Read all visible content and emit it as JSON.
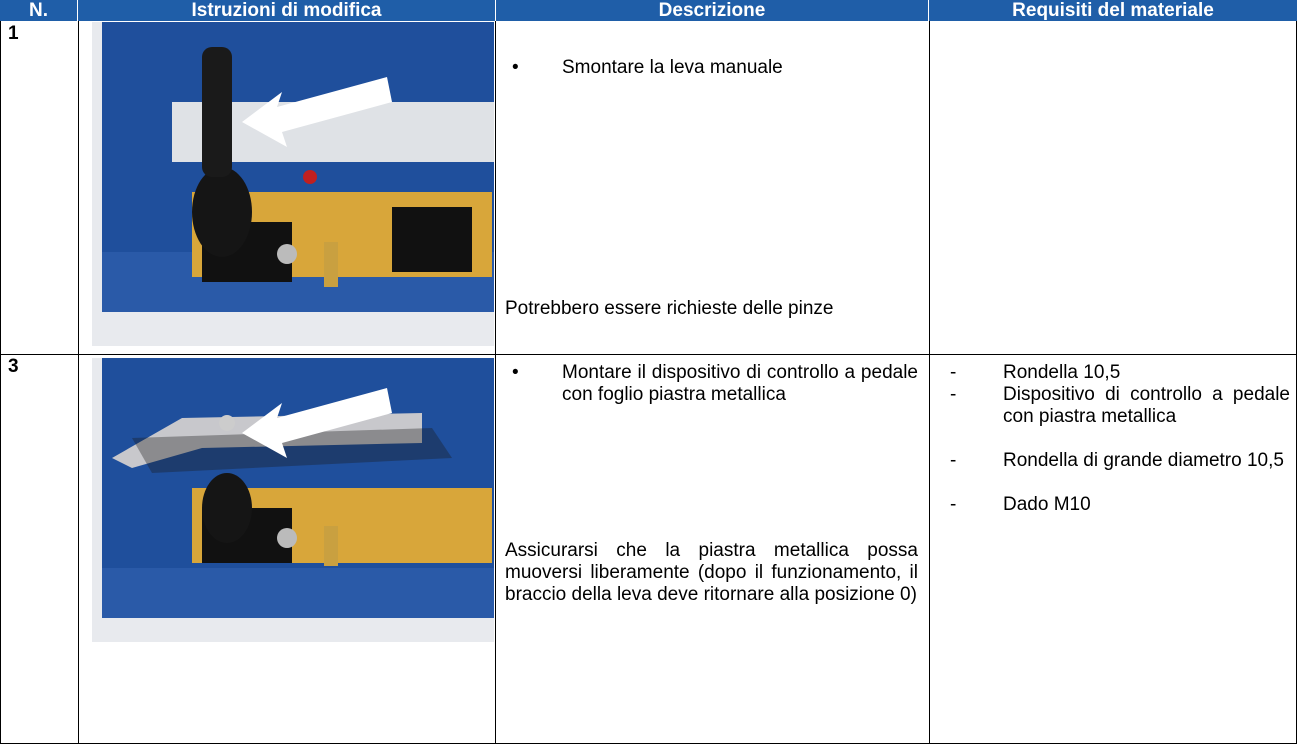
{
  "table": {
    "headers": [
      "N.",
      "Istruzioni di modifica",
      "Descrizione",
      "Requisiti del materiale"
    ],
    "rows": [
      {
        "number": "1",
        "description": {
          "bullets": [
            "Smontare la leva manuale"
          ],
          "note": "Potrebbero essere richieste delle pinze"
        }
      },
      {
        "number": "3",
        "description": {
          "bullets": [
            "Montare il dispositivo di controllo a pedale con foglio piastra metallica"
          ],
          "note": "Assicurarsi che la piastra metallica possa muoversi liberamente (dopo il funzionamento, il braccio della leva deve ritornare alla posizione 0)"
        },
        "materials": [
          "Rondella 10,5",
          "Dispositivo di controllo a pedale con piastra metallica",
          "Rondella di grande diametro 10,5",
          "Dado M10"
        ]
      }
    ]
  }
}
